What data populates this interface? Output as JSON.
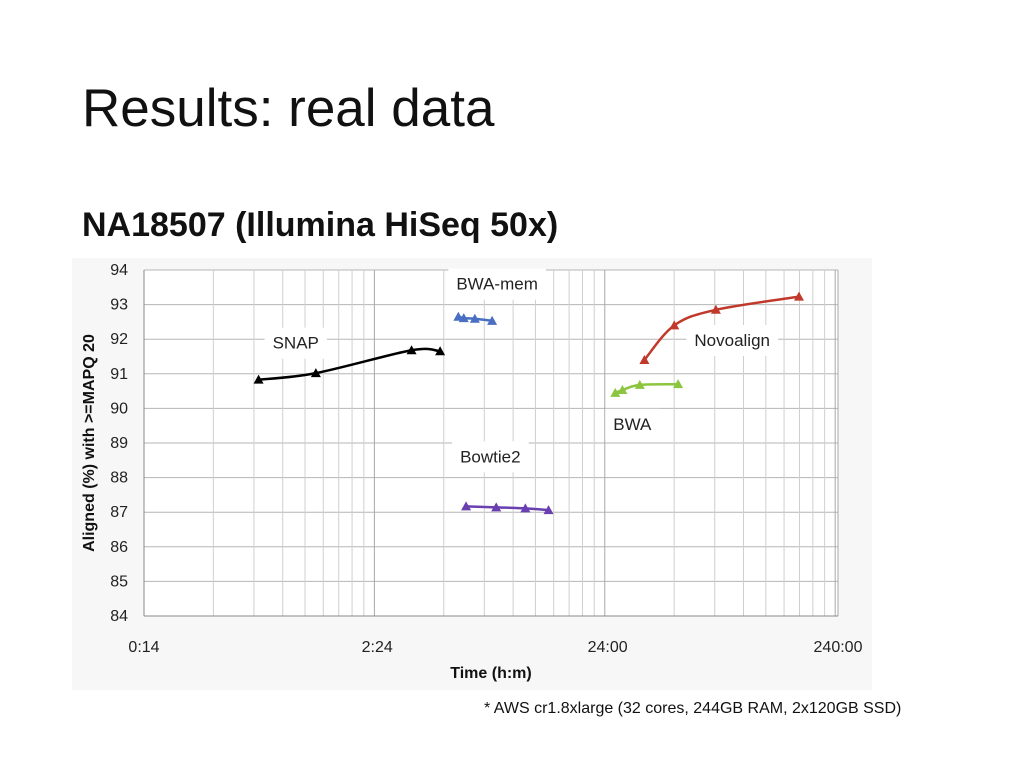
{
  "slide": {
    "title": "Results: real data",
    "subtitle": "NA18507 (Illumina HiSeq 50x)",
    "footnote": "* AWS cr1.8xlarge (32 cores, 244GB RAM, 2x120GB SSD)"
  },
  "chart_data": {
    "type": "line",
    "title": "",
    "xlabel": "Time (h:m)",
    "ylabel": "Aligned (%) with >=MAPQ 20",
    "x_scale": "log",
    "x_unit": "minutes",
    "xlim": [
      14,
      14400
    ],
    "x_ticks": [
      {
        "value": 14,
        "label": "0:14"
      },
      {
        "value": 144,
        "label": "2:24"
      },
      {
        "value": 1440,
        "label": "24:00"
      },
      {
        "value": 14400,
        "label": "240:00"
      }
    ],
    "ylim": [
      84,
      94
    ],
    "y_ticks": [
      84,
      85,
      86,
      87,
      88,
      89,
      90,
      91,
      92,
      93,
      94
    ],
    "grid": true,
    "legend": "none",
    "series": [
      {
        "name": "SNAP",
        "color": "#000000",
        "x": [
          44,
          78,
          203,
          270
        ],
        "y": [
          90.83,
          91.02,
          91.68,
          91.65
        ]
      },
      {
        "name": "BWA-mem",
        "color": "#4a6fc2",
        "x": [
          324,
          342,
          382,
          454
        ],
        "y": [
          92.65,
          92.61,
          92.59,
          92.53
        ]
      },
      {
        "name": "Bowtie2",
        "color": "#6a3fb0",
        "x": [
          350,
          473,
          633,
          798
        ],
        "y": [
          87.17,
          87.14,
          87.11,
          87.06
        ]
      },
      {
        "name": "BWA",
        "color": "#8cc63f",
        "x": [
          1555,
          1670,
          1987,
          2913
        ],
        "y": [
          90.45,
          90.53,
          90.68,
          90.7
        ]
      },
      {
        "name": "Novoalign",
        "color": "#c0392b",
        "x": [
          2080,
          2804,
          4250,
          9750
        ],
        "y": [
          91.4,
          92.4,
          92.85,
          93.23
        ]
      }
    ]
  }
}
